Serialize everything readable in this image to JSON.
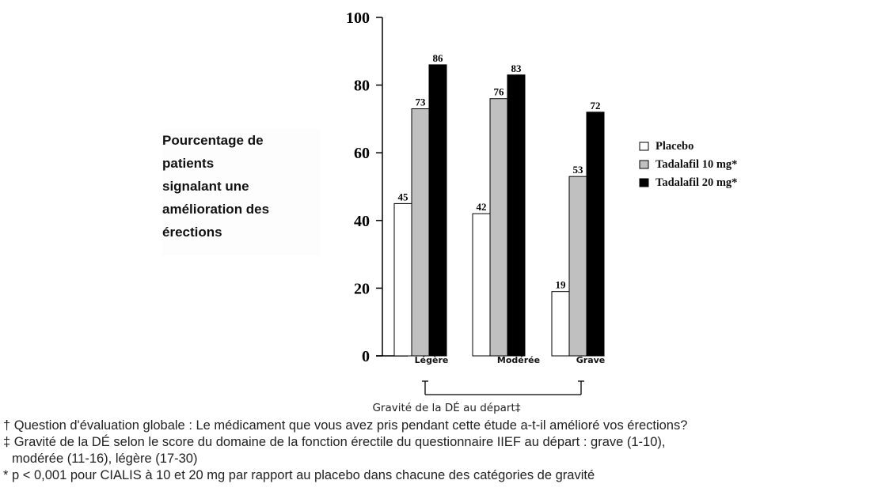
{
  "chart_data": {
    "type": "bar",
    "ylabel_lines": [
      "Pourcentage de",
      "patients",
      "signalant une",
      "amélioration des",
      "érections"
    ],
    "xlabel": "Gravité de la DÉ au départ‡",
    "ylim": [
      0,
      100
    ],
    "yticks": [
      "0",
      "20",
      "40",
      "60",
      "80",
      "100"
    ],
    "categories": [
      "Légère",
      "Modérée",
      "Grave"
    ],
    "series": [
      {
        "name": "Placebo",
        "values": [
          45,
          42,
          19
        ],
        "color": "#ffffff"
      },
      {
        "name": "Tadalafil 10 mg*",
        "values": [
          73,
          76,
          53
        ],
        "color": "#c0c0c0"
      },
      {
        "name": "Tadalafil 20 mg*",
        "values": [
          86,
          83,
          72
        ],
        "color": "#000000"
      }
    ],
    "data_labels": [
      [
        "45",
        "42",
        "19"
      ],
      [
        "73",
        "76",
        "53"
      ],
      [
        "86",
        "83",
        "72"
      ]
    ],
    "legend_position": "right",
    "grid": false
  },
  "footnotes": [
    "† Question d'évaluation globale : Le médicament que vous avez pris pendant cette étude a-t-il amélioré vos érections?",
    "‡ Gravité de la DÉ selon le score du domaine de la fonction érectile du questionnaire IIEF au départ : grave (1-10),",
    "modérée (11-16), légère (17-30)",
    "* p < 0,001 pour CIALIS à 10 et 20 mg par rapport au placebo dans chacune des catégories de gravité"
  ]
}
